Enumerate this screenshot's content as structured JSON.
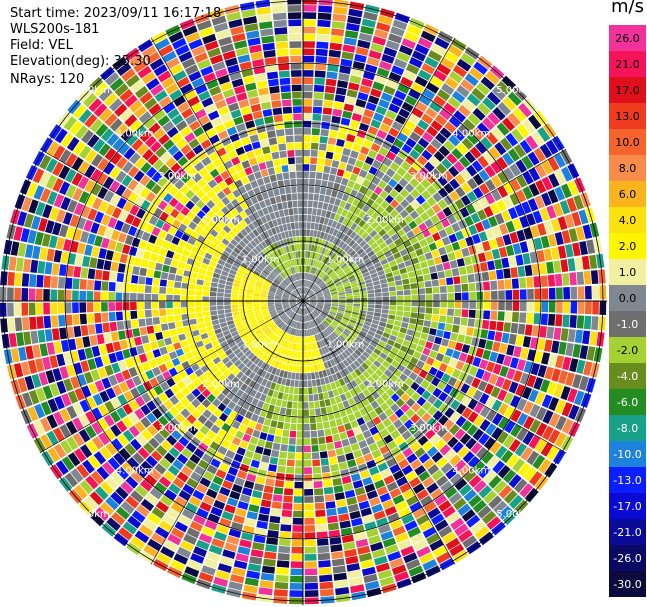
{
  "header": {
    "start_time": "Start time: 2023/09/11 16:17:18",
    "device": "WLS200s-181",
    "field": "Field: VEL",
    "elevation": "Elevation(deg): 35.30",
    "nrays": "NRays: 120"
  },
  "colorbar": {
    "unit": "m/s",
    "levels": [
      {
        "label": "26.0",
        "color": "#f0329a",
        "text": "#000"
      },
      {
        "label": "21.0",
        "color": "#f5135a",
        "text": "#000"
      },
      {
        "label": "17.0",
        "color": "#e00f1c",
        "text": "#000"
      },
      {
        "label": "13.0",
        "color": "#f03c1e",
        "text": "#000"
      },
      {
        "label": "10.0",
        "color": "#f5642d",
        "text": "#000"
      },
      {
        "label": "8.0",
        "color": "#f88c4b",
        "text": "#000"
      },
      {
        "label": "6.0",
        "color": "#fbb41e",
        "text": "#000"
      },
      {
        "label": "4.0",
        "color": "#fde10f",
        "text": "#000"
      },
      {
        "label": "2.0",
        "color": "#fff500",
        "text": "#000"
      },
      {
        "label": "1.0",
        "color": "#f0f0a0",
        "text": "#000"
      },
      {
        "label": "0.0",
        "color": "#7f8891",
        "text": "#000"
      },
      {
        "label": "-1.0",
        "color": "#6e6e6e",
        "text": "#fff"
      },
      {
        "label": "-2.0",
        "color": "#a5d232",
        "text": "#000"
      },
      {
        "label": "-4.0",
        "color": "#698c1e",
        "text": "#fff"
      },
      {
        "label": "-6.0",
        "color": "#238c23",
        "text": "#fff"
      },
      {
        "label": "-8.0",
        "color": "#19a088",
        "text": "#fff"
      },
      {
        "label": "-10.0",
        "color": "#1e82dc",
        "text": "#fff"
      },
      {
        "label": "-13.0",
        "color": "#0a1eff",
        "text": "#fff"
      },
      {
        "label": "-17.0",
        "color": "#0a0ad2",
        "text": "#fff"
      },
      {
        "label": "-21.0",
        "color": "#0a0a96",
        "text": "#fff"
      },
      {
        "label": "-26.0",
        "color": "#0a0a64",
        "text": "#fff"
      },
      {
        "label": "-30.0",
        "color": "#0a0a3c",
        "text": "#fff"
      }
    ]
  },
  "chart_data": {
    "type": "heatmap",
    "projection": "PPI polar",
    "field": "VEL",
    "nrays": 120,
    "range_rings_km": [
      1.0,
      2.0,
      3.0,
      4.0,
      5.0
    ],
    "ring_labels": [
      "1.00km",
      "2.00km",
      "3.00km",
      "4.00km",
      "5.00km"
    ],
    "bins_to_edge": 42,
    "structure": {
      "near_field_gray_until_bin": 10,
      "green_band_bins": [
        4,
        8
      ],
      "yellow_band_bins": [
        5,
        9
      ],
      "clean_gray_zone_until_bin": 18,
      "mixed_transition_bins": [
        18,
        25
      ],
      "noisy_beyond_bin": 25
    }
  }
}
